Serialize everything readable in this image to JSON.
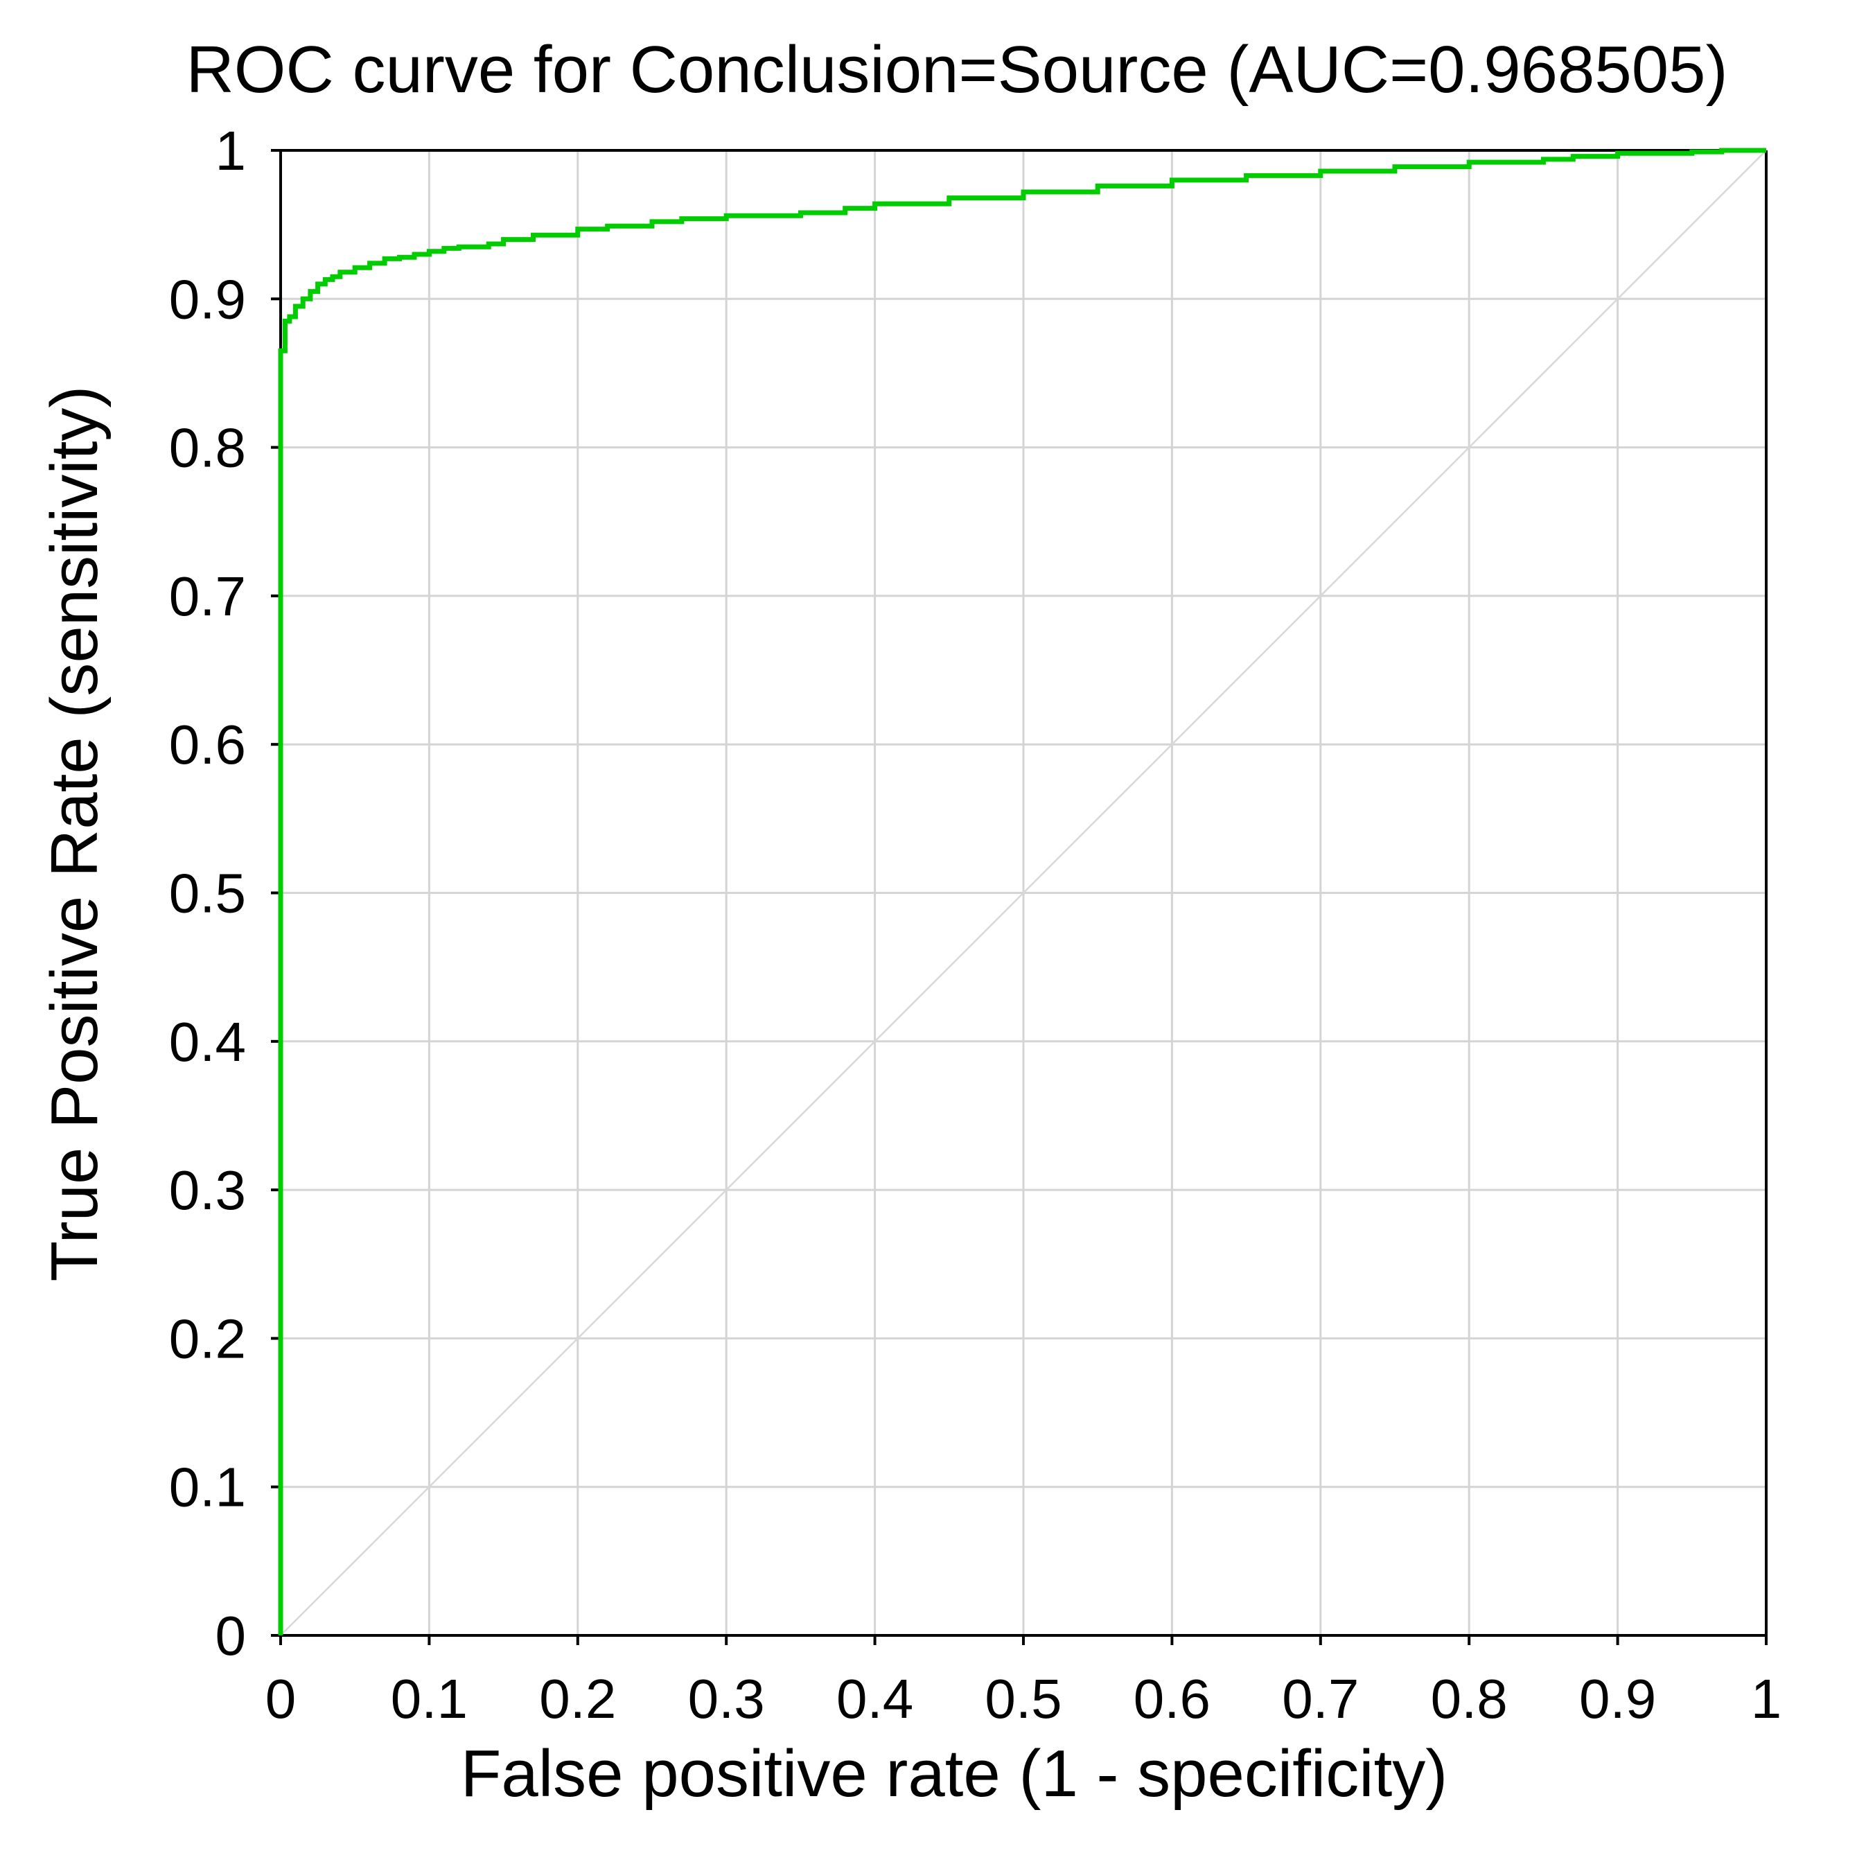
{
  "chart_data": {
    "type": "line",
    "title": "ROC curve for Conclusion=Source (AUC=0.968505)",
    "xlabel": "False positive rate (1 - specificity)",
    "ylabel": "True Positive Rate (sensitivity)",
    "xlim": [
      0,
      1
    ],
    "ylim": [
      0,
      1
    ],
    "x_ticks": [
      "0",
      "0.1",
      "0.2",
      "0.3",
      "0.4",
      "0.5",
      "0.6",
      "0.7",
      "0.8",
      "0.9",
      "1"
    ],
    "y_ticks": [
      "0",
      "0.1",
      "0.2",
      "0.3",
      "0.4",
      "0.5",
      "0.6",
      "0.7",
      "0.8",
      "0.9",
      "1"
    ],
    "grid": true,
    "series": [
      {
        "color": "#00cc00",
        "x": [
          0,
          0,
          0.003,
          0.003,
          0.006,
          0.01,
          0.015,
          0.02,
          0.025,
          0.03,
          0.035,
          0.04,
          0.05,
          0.06,
          0.07,
          0.08,
          0.09,
          0.1,
          0.11,
          0.12,
          0.14,
          0.15,
          0.17,
          0.2,
          0.22,
          0.25,
          0.27,
          0.3,
          0.35,
          0.38,
          0.4,
          0.45,
          0.5,
          0.55,
          0.6,
          0.65,
          0.7,
          0.75,
          0.8,
          0.85,
          0.87,
          0.9,
          0.95,
          0.97,
          1
        ],
        "y": [
          0,
          0.865,
          0.865,
          0.885,
          0.888,
          0.895,
          0.9,
          0.905,
          0.91,
          0.913,
          0.915,
          0.918,
          0.921,
          0.924,
          0.927,
          0.928,
          0.93,
          0.932,
          0.934,
          0.935,
          0.937,
          0.94,
          0.943,
          0.947,
          0.949,
          0.952,
          0.954,
          0.956,
          0.958,
          0.961,
          0.964,
          0.968,
          0.972,
          0.976,
          0.98,
          0.983,
          0.986,
          0.989,
          0.992,
          0.994,
          0.996,
          0.998,
          0.999,
          1.0,
          1.0
        ]
      }
    ],
    "reference_line": {
      "x": [
        0,
        1
      ],
      "y": [
        0,
        1
      ],
      "color": "#d8d8d8"
    },
    "colors": {
      "grid": "#d4d4d4",
      "axis": "#000000",
      "curve": "#00cc00"
    }
  }
}
